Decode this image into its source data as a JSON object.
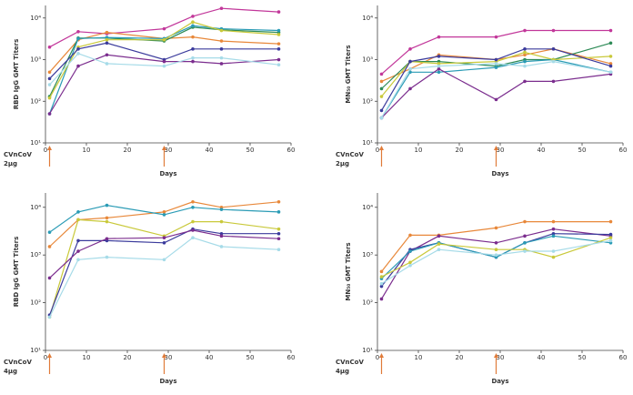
{
  "chart_data": [
    {
      "type": "line",
      "ylabel": "RBD IgG GMT Titers",
      "xlabel": "Days",
      "annotation": [
        "CVnCoV",
        "2μg"
      ],
      "annotation_color": "#e07b39",
      "dose_days": [
        1,
        29
      ],
      "log_scale": true,
      "x": [
        1,
        8,
        15,
        29,
        36,
        43,
        57
      ],
      "xlim": [
        0,
        60
      ],
      "xticks": [
        0,
        10,
        20,
        30,
        40,
        50,
        60
      ],
      "ylim": [
        10,
        20000
      ],
      "yticks": [
        {
          "value": 10,
          "label": "10¹"
        },
        {
          "value": 100,
          "label": "10²"
        },
        {
          "value": 1000,
          "label": "10³"
        },
        {
          "value": 10000,
          "label": "10⁴"
        }
      ],
      "series": [
        {
          "color": "#c2379a",
          "values": [
            2000,
            4700,
            4200,
            5500,
            11000,
            17000,
            14000
          ]
        },
        {
          "color": "#e8883a",
          "values": [
            500,
            3000,
            4500,
            3200,
            3500,
            2800,
            2400
          ]
        },
        {
          "color": "#2e8b57",
          "values": [
            130,
            3300,
            3300,
            2800,
            6000,
            5200,
            4500
          ]
        },
        {
          "color": "#2a9bb5",
          "values": [
            50,
            3200,
            3400,
            3200,
            6500,
            5500,
            5000
          ]
        },
        {
          "color": "#c9c93a",
          "values": [
            120,
            2000,
            3000,
            3000,
            8000,
            5000,
            4000
          ]
        },
        {
          "color": "#3b3b9c",
          "values": [
            350,
            1800,
            2500,
            1000,
            1800,
            1800,
            1800
          ]
        },
        {
          "color": "#7b2d8e",
          "values": [
            50,
            700,
            1300,
            900,
            900,
            800,
            1000
          ]
        },
        {
          "color": "#a6dbe8",
          "values": [
            250,
            1400,
            800,
            700,
            1100,
            1100,
            750
          ]
        }
      ]
    },
    {
      "type": "line",
      "ylabel": "MN₅₀ GMT Titers",
      "xlabel": "Days",
      "annotation": [
        "CVnCoV",
        "2μg"
      ],
      "annotation_color": "#e07b39",
      "dose_days": [
        1,
        29
      ],
      "log_scale": true,
      "x": [
        1,
        8,
        15,
        29,
        36,
        43,
        57
      ],
      "xlim": [
        0,
        60
      ],
      "xticks": [
        0,
        10,
        20,
        30,
        40,
        50,
        60
      ],
      "ylim": [
        10,
        20000
      ],
      "yticks": [
        {
          "value": 10,
          "label": "10¹"
        },
        {
          "value": 100,
          "label": "10²"
        },
        {
          "value": 1000,
          "label": "10³"
        },
        {
          "value": 10000,
          "label": "10⁴"
        }
      ],
      "series": [
        {
          "color": "#c2379a",
          "values": [
            450,
            1800,
            3500,
            3500,
            5000,
            5000,
            5000
          ]
        },
        {
          "color": "#e8883a",
          "values": [
            300,
            600,
            1300,
            1000,
            1300,
            1800,
            800
          ]
        },
        {
          "color": "#2e8b57",
          "values": [
            200,
            900,
            900,
            700,
            1000,
            1000,
            2500
          ]
        },
        {
          "color": "#2a9bb5",
          "values": [
            40,
            500,
            500,
            650,
            900,
            1000,
            500
          ]
        },
        {
          "color": "#c9c93a",
          "values": [
            130,
            900,
            800,
            900,
            1500,
            1000,
            1200
          ]
        },
        {
          "color": "#3b3b9c",
          "values": [
            60,
            900,
            1200,
            1000,
            1800,
            1800,
            700
          ]
        },
        {
          "color": "#7b2d8e",
          "values": [
            40,
            200,
            600,
            110,
            300,
            300,
            450
          ]
        },
        {
          "color": "#a6dbe8",
          "values": [
            40,
            600,
            700,
            800,
            700,
            900,
            500
          ]
        }
      ]
    },
    {
      "type": "line",
      "ylabel": "RBD IgG GMT Titers",
      "xlabel": "Days",
      "annotation": [
        "CVnCoV",
        "4μg"
      ],
      "annotation_color": "#e07b39",
      "dose_days": [
        1,
        29
      ],
      "log_scale": true,
      "x": [
        1,
        8,
        15,
        29,
        36,
        43,
        57
      ],
      "xlim": [
        0,
        60
      ],
      "xticks": [
        0,
        10,
        20,
        30,
        40,
        50,
        60
      ],
      "ylim": [
        10,
        20000
      ],
      "yticks": [
        {
          "value": 10,
          "label": "10¹"
        },
        {
          "value": 100,
          "label": "10²"
        },
        {
          "value": 1000,
          "label": "10³"
        },
        {
          "value": 10000,
          "label": "10⁴"
        }
      ],
      "series": [
        {
          "color": "#e8883a",
          "values": [
            1500,
            5500,
            6000,
            8000,
            13000,
            10000,
            13000
          ]
        },
        {
          "color": "#2a9bb5",
          "values": [
            3000,
            8000,
            11000,
            7000,
            10000,
            9000,
            8000
          ]
        },
        {
          "color": "#c9c93a",
          "values": [
            50,
            5500,
            5000,
            2500,
            5000,
            5000,
            3500
          ]
        },
        {
          "color": "#3b3b9c",
          "values": [
            55,
            2000,
            2000,
            1800,
            3500,
            2800,
            2800
          ]
        },
        {
          "color": "#7b2d8e",
          "values": [
            330,
            1200,
            2200,
            2300,
            3300,
            2500,
            2200
          ]
        },
        {
          "color": "#a6dbe8",
          "values": [
            50,
            800,
            900,
            800,
            2300,
            1500,
            1300
          ]
        }
      ]
    },
    {
      "type": "line",
      "ylabel": "MN₅₀ GMT Titers",
      "xlabel": "Days",
      "annotation": [
        "CVnCoV",
        "4μg"
      ],
      "annotation_color": "#e07b39",
      "dose_days": [
        1,
        29
      ],
      "log_scale": true,
      "x": [
        1,
        8,
        15,
        29,
        36,
        43,
        57
      ],
      "xlim": [
        0,
        60
      ],
      "xticks": [
        0,
        10,
        20,
        30,
        40,
        50,
        60
      ],
      "ylim": [
        10,
        20000
      ],
      "yticks": [
        {
          "value": 10,
          "label": "10¹"
        },
        {
          "value": 100,
          "label": "10²"
        },
        {
          "value": 1000,
          "label": "10³"
        },
        {
          "value": 10000,
          "label": "10⁴"
        }
      ],
      "series": [
        {
          "color": "#e8883a",
          "values": [
            450,
            2600,
            2600,
            3700,
            5000,
            5000,
            5000
          ]
        },
        {
          "color": "#7b2d8e",
          "values": [
            120,
            1200,
            2500,
            1800,
            2500,
            3500,
            2500
          ]
        },
        {
          "color": "#3b3b9c",
          "values": [
            220,
            1300,
            1800,
            900,
            1800,
            2800,
            2700
          ]
        },
        {
          "color": "#2a9bb5",
          "values": [
            320,
            1200,
            1800,
            900,
            1800,
            2500,
            1800
          ]
        },
        {
          "color": "#c9c93a",
          "values": [
            350,
            700,
            1700,
            1300,
            1300,
            900,
            2300
          ]
        },
        {
          "color": "#a6dbe8",
          "values": [
            250,
            600,
            1300,
            1000,
            1200,
            1200,
            2000
          ]
        }
      ]
    }
  ]
}
